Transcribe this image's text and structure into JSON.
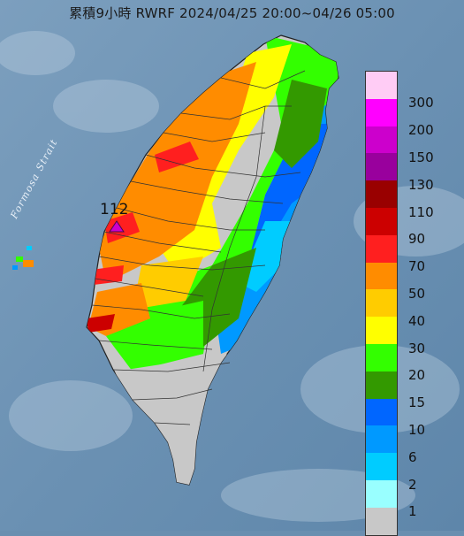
{
  "title": "累積9小時 RWRF 2024/04/25 20:00~04/26 05:00",
  "strait_label": "Formosa Strait",
  "max_label": "112",
  "legend": {
    "levels": [
      {
        "label": "300",
        "color": "#ffccf5"
      },
      {
        "label": "200",
        "color": "#ff00ff"
      },
      {
        "label": "150",
        "color": "#cc00cc"
      },
      {
        "label": "130",
        "color": "#99009d"
      },
      {
        "label": "110",
        "color": "#990000"
      },
      {
        "label": "90",
        "color": "#cc0000"
      },
      {
        "label": "70",
        "color": "#ff1f1f"
      },
      {
        "label": "50",
        "color": "#ff8c00"
      },
      {
        "label": "40",
        "color": "#ffcc00"
      },
      {
        "label": "30",
        "color": "#ffff00"
      },
      {
        "label": "20",
        "color": "#33ff00"
      },
      {
        "label": "15",
        "color": "#339900"
      },
      {
        "label": "10",
        "color": "#0066ff"
      },
      {
        "label": "6",
        "color": "#0099ff"
      },
      {
        "label": "2",
        "color": "#00ccff"
      },
      {
        "label": "1",
        "color": "#99ffff"
      },
      {
        "label": "",
        "color": "#c8c8c8"
      }
    ]
  }
}
